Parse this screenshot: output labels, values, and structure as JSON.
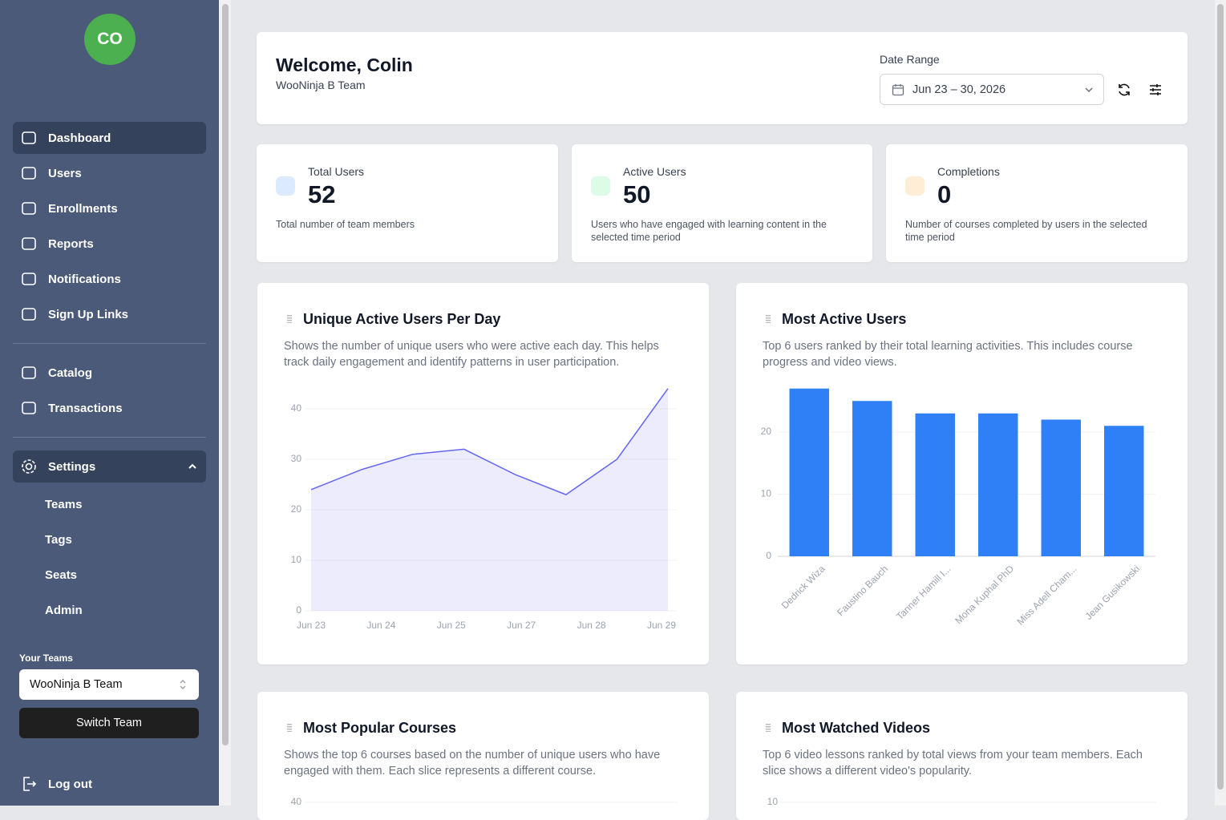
{
  "sidebar": {
    "avatar": "CO",
    "nav": [
      "Dashboard",
      "Users",
      "Enrollments",
      "Reports",
      "Notifications",
      "Sign Up Links"
    ],
    "nav2": [
      "Catalog",
      "Transactions"
    ],
    "settings": "Settings",
    "settings_items": [
      "Teams",
      "Tags",
      "Seats",
      "Admin"
    ],
    "teams_label": "Your Teams",
    "team_select": "WooNinja B Team",
    "switch_button": "Switch Team",
    "logout": "Log out"
  },
  "header": {
    "title": "Welcome, Colin",
    "subtitle": "WooNinja B Team",
    "date_label": "Date Range",
    "date_value": "Jun 23 – 30, 2026"
  },
  "stats": [
    {
      "label": "Total Users",
      "value": "52",
      "description": "Total number of team members",
      "color": "#dbeafe"
    },
    {
      "label": "Active Users",
      "value": "50",
      "description": "Users who have engaged with learning content in the selected time period",
      "color": "#dcfce7"
    },
    {
      "label": "Completions",
      "value": "0",
      "description": "Number of courses completed by users in the selected time period",
      "color": "#ffedd5"
    }
  ],
  "chart_data": [
    {
      "type": "area",
      "title": "Unique Active Users Per Day",
      "description": "Shows the number of unique users who were active each day. This helps track daily engagement and identify patterns in user participation.",
      "x_labels": [
        "Jun 23",
        "Jun 24",
        "Jun 25",
        "Jun 27",
        "Jun 28",
        "Jun 29"
      ],
      "values": [
        24,
        28,
        31,
        32,
        27,
        23,
        30,
        44
      ],
      "color": "#6366f1",
      "ylim": [
        0,
        44
      ],
      "yticks": [
        0,
        10,
        20,
        30,
        40
      ],
      "grid": true
    },
    {
      "type": "bar",
      "title": "Most Active Users",
      "description": "Top 6 users ranked by their total learning activities. This includes course progress and video views.",
      "categories": [
        "Dedrick Wiza",
        "Faustino Bauch",
        "Tanner Hamill I...",
        "Mona Kuphal PhD",
        "Miss Adell Cham...",
        "Jean Gusikowski"
      ],
      "values": [
        27,
        25,
        23,
        23,
        22,
        21
      ],
      "color": "#2f80f7",
      "ylim": [
        0,
        27
      ],
      "yticks": [
        0,
        10,
        20
      ],
      "grid": true
    }
  ],
  "panels": [
    {
      "title": "Most Popular Courses",
      "description": "Shows the top 6 courses based on the number of unique users who have engaged with them. Each slice represents a different course.",
      "yticks": [
        40
      ]
    },
    {
      "title": "Most Watched Videos",
      "description": "Top 6 video lessons ranked by total views from your team members. Each slice shows a different video's popularity.",
      "yticks": [
        10
      ]
    }
  ]
}
